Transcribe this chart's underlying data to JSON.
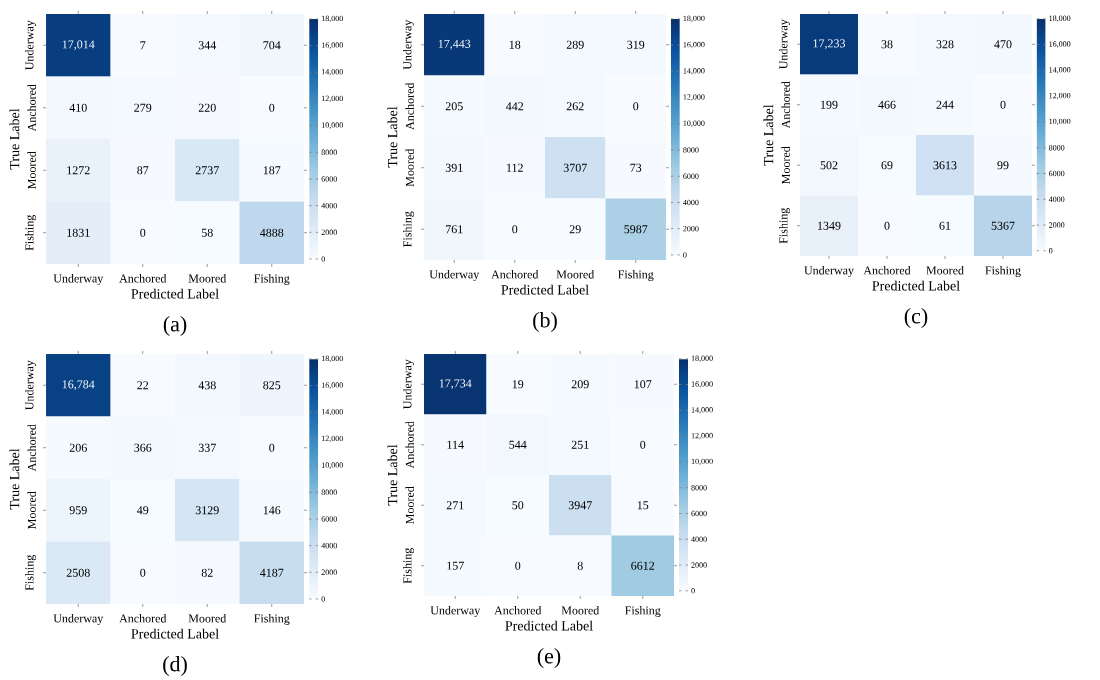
{
  "chart_data": [
    {
      "type": "heatmap",
      "categories": [
        "Underway",
        "Anchored",
        "Moored",
        "Fishing"
      ],
      "y_categories": [
        "Underway",
        "Anchored",
        "Moored",
        "Fishing"
      ],
      "xlabel": "Predicted Label",
      "ylabel": "True Label",
      "annotations": [
        "(a)"
      ],
      "cells": [
        [
          17014,
          7,
          344,
          704
        ],
        [
          410,
          279,
          220,
          0
        ],
        [
          1272,
          87,
          2737,
          187
        ],
        [
          1831,
          0,
          58,
          4888
        ]
      ],
      "cell_labels": [
        [
          "17,014",
          "7",
          "344",
          "704"
        ],
        [
          "410",
          "279",
          "220",
          "0"
        ],
        [
          "1272",
          "87",
          "2737",
          "187"
        ],
        [
          "1831",
          "0",
          "58",
          "4888"
        ]
      ],
      "clim": [
        0,
        18000
      ],
      "cticks": [
        0,
        2000,
        4000,
        6000,
        8000,
        {
          "value": 10000,
          "label": "10,000"
        },
        {
          "value": 12000,
          "label": "12,000"
        },
        {
          "value": 14000,
          "label": "14,000"
        },
        {
          "value": 16000,
          "label": "16,000"
        },
        {
          "value": 18000,
          "label": "18,000"
        }
      ]
    },
    {
      "type": "heatmap",
      "categories": [
        "Underway",
        "Anchored",
        "Moored",
        "Fishing"
      ],
      "y_categories": [
        "Underway",
        "Anchored",
        "Moored",
        "Fishing"
      ],
      "xlabel": "Predicted Label",
      "ylabel": "True Label",
      "annotations": [
        "(b)"
      ],
      "cells": [
        [
          17443,
          18,
          289,
          319
        ],
        [
          205,
          442,
          262,
          0
        ],
        [
          391,
          112,
          3707,
          73
        ],
        [
          761,
          0,
          29,
          5987
        ]
      ],
      "cell_labels": [
        [
          "17,443",
          "18",
          "289",
          "319"
        ],
        [
          "205",
          "442",
          "262",
          "0"
        ],
        [
          "391",
          "112",
          "3707",
          "73"
        ],
        [
          "761",
          "0",
          "29",
          "5987"
        ]
      ],
      "clim": [
        0,
        18000
      ],
      "cticks": [
        0,
        2000,
        4000,
        6000,
        8000,
        {
          "value": 10000,
          "label": "10,000"
        },
        {
          "value": 12000,
          "label": "12,000"
        },
        {
          "value": 14000,
          "label": "14,000"
        },
        {
          "value": 16000,
          "label": "16,000"
        },
        {
          "value": 18000,
          "label": "18,000"
        }
      ]
    },
    {
      "type": "heatmap",
      "categories": [
        "Underway",
        "Anchored",
        "Moored",
        "Fishing"
      ],
      "y_categories": [
        "Underway",
        "Anchored",
        "Moored",
        "Fishing"
      ],
      "xlabel": "Predicted Label",
      "ylabel": "True Label",
      "annotations": [
        "(c)"
      ],
      "cells": [
        [
          17233,
          38,
          328,
          470
        ],
        [
          199,
          466,
          244,
          0
        ],
        [
          502,
          69,
          3613,
          99
        ],
        [
          1349,
          0,
          61,
          5367
        ]
      ],
      "cell_labels": [
        [
          "17,233",
          "38",
          "328",
          "470"
        ],
        [
          "199",
          "466",
          "244",
          "0"
        ],
        [
          "502",
          "69",
          "3613",
          "99"
        ],
        [
          "1349",
          "0",
          "61",
          "5367"
        ]
      ],
      "clim": [
        0,
        18000
      ],
      "cticks": [
        0,
        2000,
        4000,
        6000,
        8000,
        {
          "value": 10000,
          "label": "10,000"
        },
        {
          "value": 12000,
          "label": "12,000"
        },
        {
          "value": 14000,
          "label": "14,000"
        },
        {
          "value": 16000,
          "label": "16,000"
        },
        {
          "value": 18000,
          "label": "18,000"
        }
      ]
    },
    {
      "type": "heatmap",
      "categories": [
        "Underway",
        "Anchored",
        "Moored",
        "Fishing"
      ],
      "y_categories": [
        "Underway",
        "Anchored",
        "Moored",
        "Fishing"
      ],
      "xlabel": "Predicted Label",
      "ylabel": "True Label",
      "annotations": [
        "(d)"
      ],
      "cells": [
        [
          16784,
          22,
          438,
          825
        ],
        [
          206,
          366,
          337,
          0
        ],
        [
          959,
          49,
          3129,
          146
        ],
        [
          2508,
          0,
          82,
          4187
        ]
      ],
      "cell_labels": [
        [
          "16,784",
          "22",
          "438",
          "825"
        ],
        [
          "206",
          "366",
          "337",
          "0"
        ],
        [
          "959",
          "49",
          "3129",
          "146"
        ],
        [
          "2508",
          "0",
          "82",
          "4187"
        ]
      ],
      "clim": [
        0,
        18000
      ],
      "cticks": [
        0,
        2000,
        4000,
        6000,
        8000,
        {
          "value": 10000,
          "label": "10,000"
        },
        {
          "value": 12000,
          "label": "12,000"
        },
        {
          "value": 14000,
          "label": "14,000"
        },
        {
          "value": 16000,
          "label": "16,000"
        },
        {
          "value": 18000,
          "label": "18,000"
        }
      ]
    },
    {
      "type": "heatmap",
      "categories": [
        "Underway",
        "Anchored",
        "Moored",
        "Fishing"
      ],
      "y_categories": [
        "Underway",
        "Anchored",
        "Moored",
        "Fishing"
      ],
      "xlabel": "Predicted Label",
      "ylabel": "True Label",
      "annotations": [
        "(e)"
      ],
      "cells": [
        [
          17734,
          19,
          209,
          107
        ],
        [
          114,
          544,
          251,
          0
        ],
        [
          271,
          50,
          3947,
          15
        ],
        [
          157,
          0,
          8,
          6612
        ]
      ],
      "cell_labels": [
        [
          "17,734",
          "19",
          "209",
          "107"
        ],
        [
          "114",
          "544",
          "251",
          "0"
        ],
        [
          "271",
          "50",
          "3947",
          "15"
        ],
        [
          "157",
          "0",
          "8",
          "6612"
        ]
      ],
      "clim": [
        0,
        18000
      ],
      "cticks": [
        0,
        2000,
        4000,
        6000,
        8000,
        {
          "value": 10000,
          "label": "10,000"
        },
        {
          "value": 12000,
          "label": "12,000"
        },
        {
          "value": 14000,
          "label": "14,000"
        },
        {
          "value": 16000,
          "label": "16,000"
        },
        {
          "value": 18000,
          "label": "18,000"
        }
      ]
    }
  ]
}
